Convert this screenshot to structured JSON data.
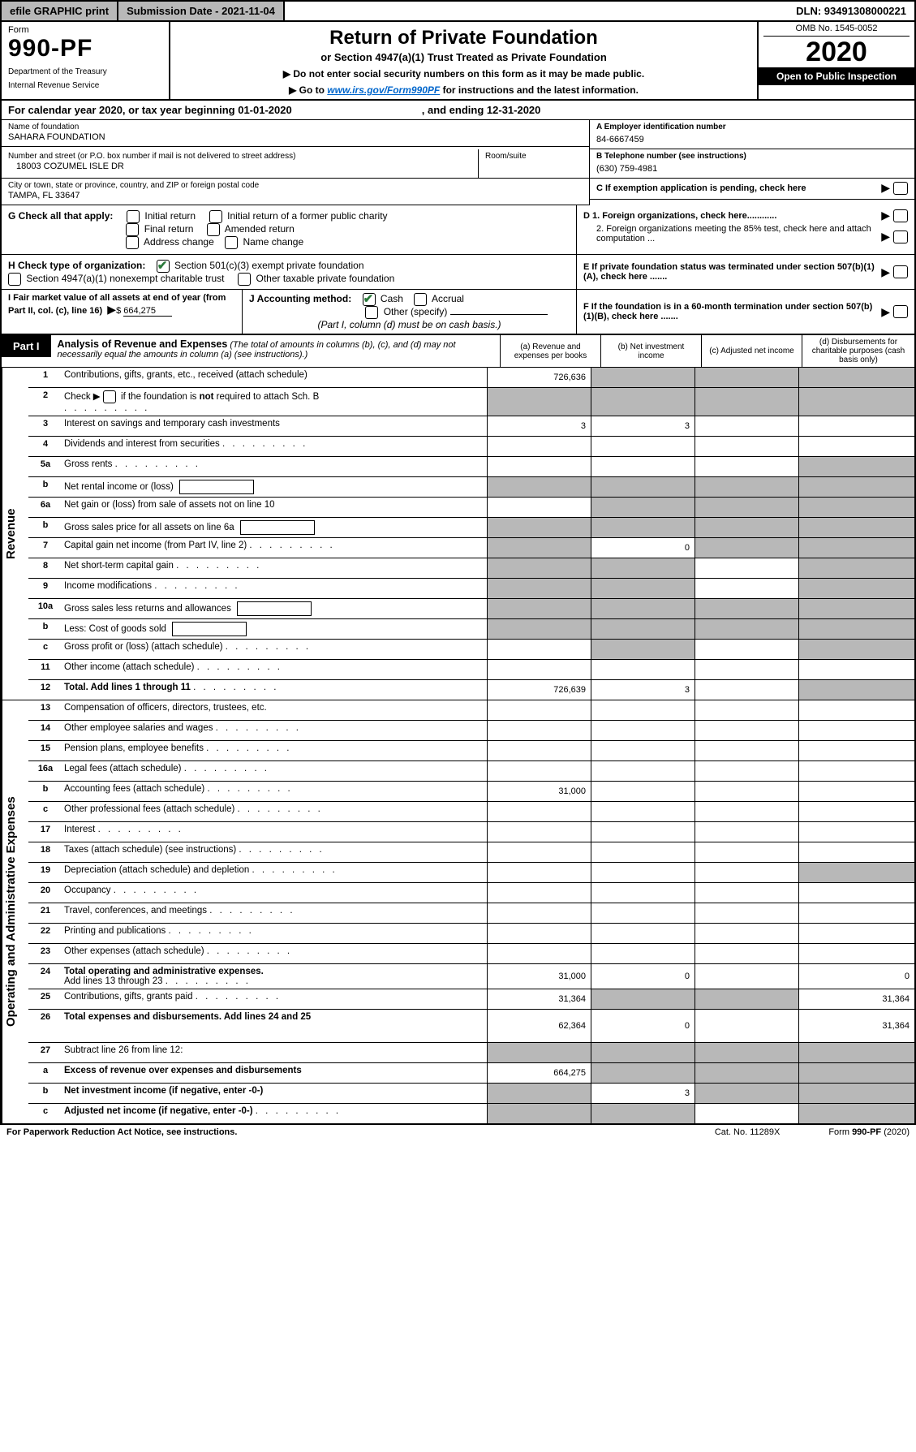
{
  "topbar": {
    "efile": "efile GRAPHIC print",
    "submission": "Submission Date - 2021-11-04",
    "dln": "DLN: 93491308000221"
  },
  "header": {
    "form_label": "Form",
    "form_no": "990-PF",
    "dept": "Department of the Treasury",
    "irs": "Internal Revenue Service",
    "title": "Return of Private Foundation",
    "subtitle": "or Section 4947(a)(1) Trust Treated as Private Foundation",
    "note1": "▶ Do not enter social security numbers on this form as it may be made public.",
    "note2_pre": "▶ Go to ",
    "note2_link": "www.irs.gov/Form990PF",
    "note2_post": " for instructions and the latest information.",
    "omb": "OMB No. 1545-0052",
    "year": "2020",
    "open": "Open to Public Inspection"
  },
  "yearline": {
    "pre": "For calendar year 2020, or tax year beginning 01-01-2020",
    "end_lbl": ", and ending 12-31-2020"
  },
  "foundation": {
    "name_lbl": "Name of foundation",
    "name": "SAHARA FOUNDATION",
    "addr_lbl": "Number and street (or P.O. box number if mail is not delivered to street address)",
    "addr": "18003 COZUMEL ISLE DR",
    "room_lbl": "Room/suite",
    "city_lbl": "City or town, state or province, country, and ZIP or foreign postal code",
    "city": "TAMPA, FL  33647",
    "ein_lbl": "A Employer identification number",
    "ein": "84-6667459",
    "tel_lbl": "B Telephone number (see instructions)",
    "tel": "(630) 759-4981",
    "c_lbl": "C If exemption application is pending, check here",
    "d1": "D 1. Foreign organizations, check here............",
    "d2": "2. Foreign organizations meeting the 85% test, check here and attach computation ...",
    "e": "E  If private foundation status was terminated under section 507(b)(1)(A), check here .......",
    "f": "F  If the foundation is in a 60-month termination under section 507(b)(1)(B), check here .......",
    "g_lbl": "G Check all that apply:",
    "g_initial": "Initial return",
    "g_initial_former": "Initial return of a former public charity",
    "g_final": "Final return",
    "g_amended": "Amended return",
    "g_addr_change": "Address change",
    "g_name_change": "Name change",
    "h_lbl": "H Check type of organization:",
    "h_501c3": "Section 501(c)(3) exempt private foundation",
    "h_4947": "Section 4947(a)(1) nonexempt charitable trust",
    "h_other_tax": "Other taxable private foundation",
    "i_lbl": "I Fair market value of all assets at end of year (from Part II, col. (c), line 16)",
    "i_val": "664,275",
    "j_lbl": "J Accounting method:",
    "j_cash": "Cash",
    "j_accrual": "Accrual",
    "j_other": "Other (specify)",
    "j_note": "(Part I, column (d) must be on cash basis.)"
  },
  "part1": {
    "tab": "Part I",
    "title": "Analysis of Revenue and Expenses",
    "title_paren": " (The total of amounts in columns (b), (c), and (d) may not necessarily equal the amounts in column (a) (see instructions).)",
    "col_a": "(a)   Revenue and expenses per books",
    "col_b": "(b)  Net investment income",
    "col_c": "(c)  Adjusted net income",
    "col_d": "(d)  Disbursements for charitable purposes (cash basis only)"
  },
  "revenue_label": "Revenue",
  "expenses_label": "Operating and Administrative Expenses",
  "rows": {
    "r1": {
      "n": "1",
      "t": "Contributions, gifts, grants, etc., received (attach schedule)",
      "a": "726,636"
    },
    "r2": {
      "n": "2",
      "t_pre": "Check ▶ ",
      "t_post": " if the foundation is not required to attach Sch. B"
    },
    "r3": {
      "n": "3",
      "t": "Interest on savings and temporary cash investments",
      "a": "3",
      "b": "3"
    },
    "r4": {
      "n": "4",
      "t": "Dividends and interest from securities"
    },
    "r5a": {
      "n": "5a",
      "t": "Gross rents"
    },
    "r5b": {
      "n": "b",
      "t": "Net rental income or (loss)"
    },
    "r6a": {
      "n": "6a",
      "t": "Net gain or (loss) from sale of assets not on line 10"
    },
    "r6b": {
      "n": "b",
      "t": "Gross sales price for all assets on line 6a"
    },
    "r7": {
      "n": "7",
      "t": "Capital gain net income (from Part IV, line 2)",
      "b": "0"
    },
    "r8": {
      "n": "8",
      "t": "Net short-term capital gain"
    },
    "r9": {
      "n": "9",
      "t": "Income modifications"
    },
    "r10a": {
      "n": "10a",
      "t": "Gross sales less returns and allowances"
    },
    "r10b": {
      "n": "b",
      "t": "Less: Cost of goods sold"
    },
    "r10c": {
      "n": "c",
      "t": "Gross profit or (loss) (attach schedule)"
    },
    "r11": {
      "n": "11",
      "t": "Other income (attach schedule)"
    },
    "r12": {
      "n": "12",
      "t": "Total. Add lines 1 through 11",
      "a": "726,639",
      "b": "3"
    },
    "r13": {
      "n": "13",
      "t": "Compensation of officers, directors, trustees, etc."
    },
    "r14": {
      "n": "14",
      "t": "Other employee salaries and wages"
    },
    "r15": {
      "n": "15",
      "t": "Pension plans, employee benefits"
    },
    "r16a": {
      "n": "16a",
      "t": "Legal fees (attach schedule)"
    },
    "r16b": {
      "n": "b",
      "t": "Accounting fees (attach schedule)",
      "a": "31,000"
    },
    "r16c": {
      "n": "c",
      "t": "Other professional fees (attach schedule)"
    },
    "r17": {
      "n": "17",
      "t": "Interest"
    },
    "r18": {
      "n": "18",
      "t": "Taxes (attach schedule) (see instructions)"
    },
    "r19": {
      "n": "19",
      "t": "Depreciation (attach schedule) and depletion"
    },
    "r20": {
      "n": "20",
      "t": "Occupancy"
    },
    "r21": {
      "n": "21",
      "t": "Travel, conferences, and meetings"
    },
    "r22": {
      "n": "22",
      "t": "Printing and publications"
    },
    "r23": {
      "n": "23",
      "t": "Other expenses (attach schedule)"
    },
    "r24": {
      "n": "24",
      "t": "Total operating and administrative expenses.",
      "t2": "Add lines 13 through 23",
      "a": "31,000",
      "b": "0",
      "d": "0"
    },
    "r25": {
      "n": "25",
      "t": "Contributions, gifts, grants paid",
      "a": "31,364",
      "d": "31,364"
    },
    "r26": {
      "n": "26",
      "t": "Total expenses and disbursements. Add lines 24 and 25",
      "a": "62,364",
      "b": "0",
      "d": "31,364"
    },
    "r27": {
      "n": "27",
      "t": "Subtract line 26 from line 12:"
    },
    "r27a": {
      "n": "a",
      "t": "Excess of revenue over expenses and disbursements",
      "a": "664,275"
    },
    "r27b": {
      "n": "b",
      "t": "Net investment income (if negative, enter -0-)",
      "b": "3"
    },
    "r27c": {
      "n": "c",
      "t": "Adjusted net income (if negative, enter -0-)"
    }
  },
  "footer": {
    "pra": "For Paperwork Reduction Act Notice, see instructions.",
    "cat": "Cat. No. 11289X",
    "form": "Form 990-PF (2020)"
  },
  "colors": {
    "shade": "#b8b8b8",
    "link": "#0066cc",
    "check_green": "#2a7a3a"
  }
}
